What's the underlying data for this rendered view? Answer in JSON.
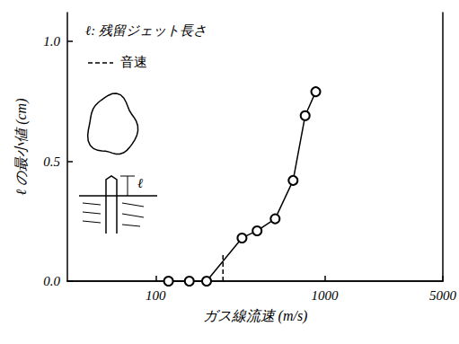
{
  "chart_data": {
    "type": "line",
    "x_label": "ガス線流速 (m/s)",
    "y_label": "ℓ の最小値 (cm)",
    "annotations": {
      "jet_length": "ℓ: 残留ジェット長さ",
      "sound_speed": "音速",
      "inset_label": "ℓ"
    },
    "x": [
      119,
      158,
      200,
      324,
      398,
      509,
      650,
      766,
      885
    ],
    "values": [
      0,
      0,
      0,
      0.18,
      0.21,
      0.26,
      0.42,
      0.69,
      0.79
    ],
    "color": "#000000",
    "marker": "circle_open",
    "sound_speed": {
      "x": 250,
      "y": [
        0,
        0.11
      ],
      "line_style": "dashed"
    },
    "log": "x",
    "xlim": [
      30,
      5000
    ],
    "xticks": [
      100,
      1000,
      5000
    ],
    "ylim": [
      0,
      1.12
    ],
    "yticks": [
      {
        "value": 0,
        "label": "0.0"
      },
      {
        "value": 0.5,
        "label": "0.5"
      },
      {
        "value": 1,
        "label": "1.0"
      }
    ],
    "grid": false
  }
}
